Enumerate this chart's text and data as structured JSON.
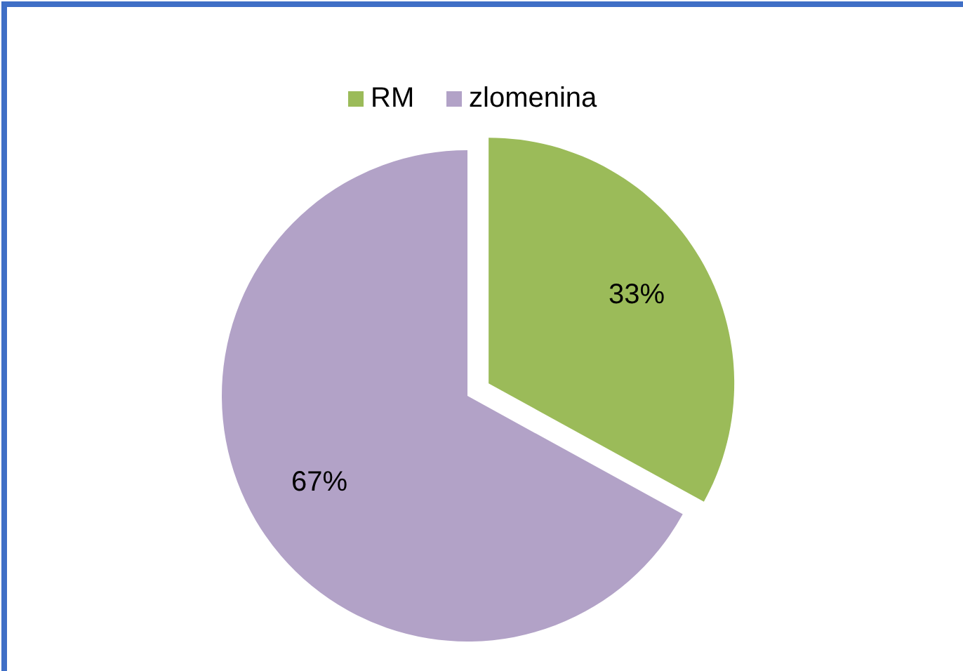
{
  "chart_data": {
    "type": "pie",
    "categories": [
      "RM",
      "zlomenina"
    ],
    "values": [
      33,
      67
    ],
    "colors": [
      "#9bbb59",
      "#b2a2c7"
    ],
    "value_labels": [
      "33%",
      "67%"
    ],
    "legend": "top"
  }
}
